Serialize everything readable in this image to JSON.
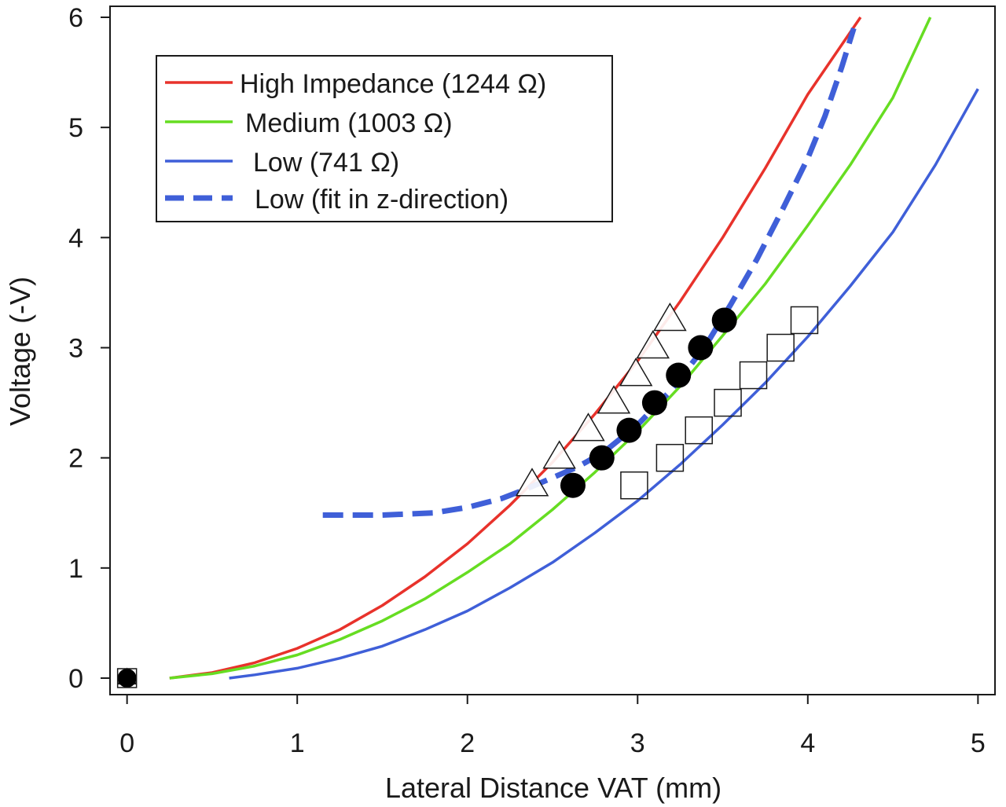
{
  "chart_data": {
    "type": "line",
    "title": "",
    "xlabel": "Lateral Distance VAT (mm)",
    "ylabel": "Voltage (-V)",
    "xlim": [
      -0.1,
      5.1
    ],
    "ylim": [
      -0.15,
      6.1
    ],
    "xticks": [
      "0",
      "1",
      "2",
      "3",
      "4",
      "5"
    ],
    "yticks": [
      "0",
      "1",
      "2",
      "3",
      "4",
      "5",
      "6"
    ],
    "grid": false,
    "legend_position": "top-left",
    "series": [
      {
        "name": "High Impedance (1244 Ω)",
        "color": "#e8322b",
        "style": "solid",
        "x": [
          0.25,
          0.5,
          0.75,
          1.0,
          1.25,
          1.5,
          1.75,
          2.0,
          2.25,
          2.5,
          2.75,
          3.0,
          3.25,
          3.5,
          3.75,
          4.0,
          4.31
        ],
        "y": [
          0.0,
          0.05,
          0.14,
          0.27,
          0.44,
          0.66,
          0.92,
          1.22,
          1.57,
          1.96,
          2.4,
          2.88,
          3.42,
          4.0,
          4.63,
          5.3,
          6.0
        ]
      },
      {
        "name": "Medium (1003 Ω)",
        "color": "#66dd22",
        "style": "solid",
        "x": [
          0.25,
          0.5,
          0.75,
          1.0,
          1.25,
          1.5,
          1.75,
          2.0,
          2.25,
          2.5,
          2.75,
          3.0,
          3.25,
          3.5,
          3.75,
          4.0,
          4.25,
          4.5,
          4.72
        ],
        "y": [
          0.0,
          0.04,
          0.11,
          0.21,
          0.35,
          0.52,
          0.72,
          0.96,
          1.22,
          1.53,
          1.87,
          2.24,
          2.65,
          3.11,
          3.58,
          4.11,
          4.66,
          5.27,
          6.0
        ]
      },
      {
        "name": "Low  (741 Ω)",
        "color": "#3f5fd8",
        "style": "solid",
        "x": [
          0.6,
          0.75,
          1.0,
          1.25,
          1.5,
          1.75,
          2.0,
          2.25,
          2.5,
          2.75,
          3.0,
          3.25,
          3.5,
          3.75,
          4.0,
          4.25,
          4.5,
          4.75,
          5.0
        ],
        "y": [
          0.0,
          0.03,
          0.09,
          0.18,
          0.29,
          0.44,
          0.61,
          0.82,
          1.05,
          1.32,
          1.61,
          1.94,
          2.3,
          2.68,
          3.1,
          3.56,
          4.05,
          4.66,
          5.35
        ]
      },
      {
        "name": "Low (fit in z-direction)",
        "color": "#3f5fd8",
        "style": "dashed",
        "x": [
          1.15,
          1.5,
          1.8,
          2.0,
          2.2,
          2.35,
          2.5,
          2.65,
          2.8,
          3.0,
          3.2,
          3.4,
          3.55,
          3.7,
          3.85,
          4.0,
          4.1,
          4.2,
          4.27
        ],
        "y": [
          1.48,
          1.48,
          1.5,
          1.55,
          1.63,
          1.72,
          1.82,
          1.92,
          2.05,
          2.3,
          2.62,
          3.02,
          3.4,
          3.8,
          4.25,
          4.72,
          5.1,
          5.55,
          5.9
        ]
      }
    ],
    "markers": [
      {
        "name": "triangles",
        "shape": "triangle",
        "x": [
          0,
          2.38,
          2.54,
          2.71,
          2.86,
          2.99,
          3.09,
          3.19
        ],
        "y": [
          0,
          1.75,
          2.0,
          2.25,
          2.5,
          2.75,
          3.0,
          3.25
        ]
      },
      {
        "name": "circles",
        "shape": "circle",
        "x": [
          0,
          2.62,
          2.79,
          2.95,
          3.1,
          3.24,
          3.37,
          3.51
        ],
        "y": [
          0,
          1.75,
          2.0,
          2.25,
          2.5,
          2.75,
          3.0,
          3.25
        ]
      },
      {
        "name": "squares",
        "shape": "square",
        "x": [
          0,
          2.98,
          3.19,
          3.36,
          3.53,
          3.68,
          3.84,
          3.98
        ],
        "y": [
          0,
          1.75,
          2.0,
          2.25,
          2.5,
          2.75,
          3.0,
          3.25
        ]
      }
    ]
  }
}
